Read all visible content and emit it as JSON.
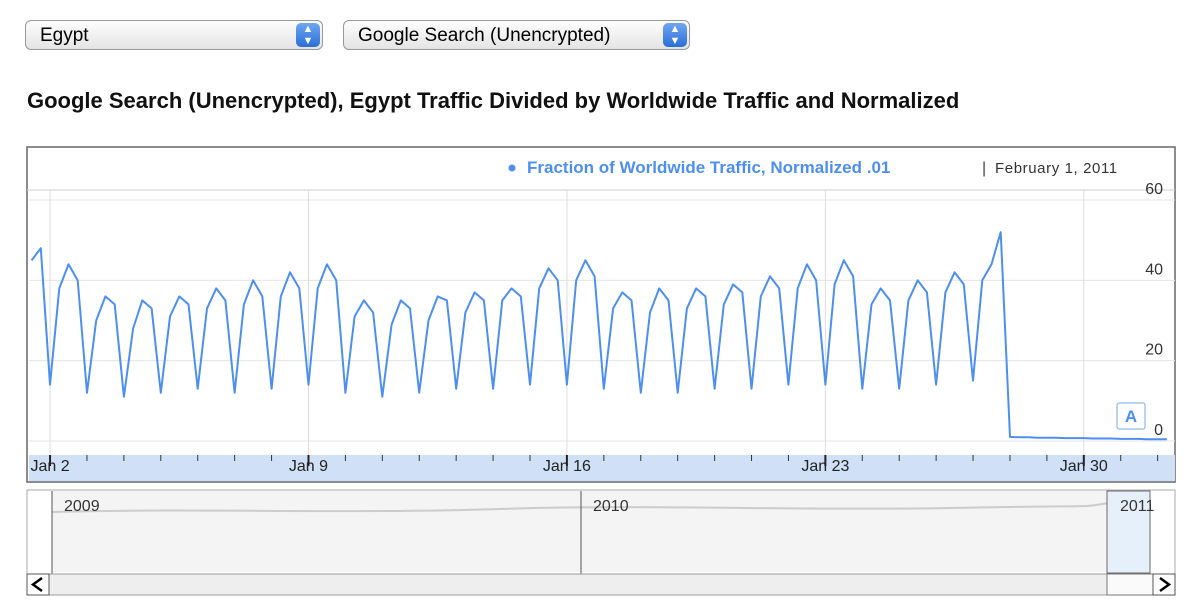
{
  "controls": {
    "country": "Egypt",
    "product": "Google Search (Unencrypted)"
  },
  "chart_data": {
    "type": "line",
    "title": "Google Search (Unencrypted), Egypt Traffic Divided by Worldwide Traffic and Normalized",
    "date": "February 1, 2011",
    "annotation": "A",
    "grid": true,
    "x": [
      1.5,
      1.75,
      2,
      2.25,
      2.5,
      2.75,
      3,
      3.25,
      3.5,
      3.75,
      4,
      4.25,
      4.5,
      4.75,
      5,
      5.25,
      5.5,
      5.75,
      6,
      6.25,
      6.5,
      6.75,
      7,
      7.25,
      7.5,
      7.75,
      8,
      8.25,
      8.5,
      8.75,
      9,
      9.25,
      9.5,
      9.75,
      10,
      10.25,
      10.5,
      10.75,
      11,
      11.25,
      11.5,
      11.75,
      12,
      12.25,
      12.5,
      12.75,
      13,
      13.25,
      13.5,
      13.75,
      14,
      14.25,
      14.5,
      14.75,
      15,
      15.25,
      15.5,
      15.75,
      16,
      16.25,
      16.5,
      16.75,
      17,
      17.25,
      17.5,
      17.75,
      18,
      18.25,
      18.5,
      18.75,
      19,
      19.25,
      19.5,
      19.75,
      20,
      20.25,
      20.5,
      20.75,
      21,
      21.25,
      21.5,
      21.75,
      22,
      22.25,
      22.5,
      22.75,
      23,
      23.25,
      23.5,
      23.75,
      24,
      24.25,
      24.5,
      24.75,
      25,
      25.25,
      25.5,
      25.75,
      26,
      26.25,
      26.5,
      26.75,
      27,
      27.25,
      27.5,
      27.75,
      28,
      28.25,
      28.5,
      28.75,
      29,
      29.25,
      29.5,
      29.75,
      30,
      30.25,
      30.5,
      30.75,
      31,
      31.25,
      31.5,
      31.75,
      32,
      32.25
    ],
    "series": [
      {
        "name": "Fraction of Worldwide Traffic, Normalized .01",
        "color": "#4d8ff0",
        "values": [
          45,
          48,
          14,
          38,
          44,
          40,
          12,
          30,
          36,
          34,
          11,
          28,
          35,
          33,
          12,
          31,
          36,
          34,
          13,
          33,
          38,
          35,
          12,
          34,
          40,
          36,
          13,
          36,
          42,
          38,
          14,
          38,
          44,
          40,
          12,
          31,
          35,
          32,
          11,
          29,
          35,
          33,
          12,
          30,
          36,
          35,
          13,
          32,
          37,
          35,
          13,
          35,
          38,
          36,
          14,
          38,
          43,
          40,
          14,
          40,
          45,
          41,
          13,
          33,
          37,
          35,
          12,
          32,
          38,
          35,
          12,
          33,
          38,
          36,
          13,
          34,
          39,
          37,
          13,
          36,
          41,
          38,
          14,
          38,
          44,
          40,
          14,
          39,
          45,
          41,
          13,
          34,
          38,
          35,
          13,
          35,
          40,
          37,
          14,
          37,
          42,
          39,
          15,
          40,
          44,
          52,
          1,
          0.9,
          0.9,
          0.8,
          0.8,
          0.8,
          0.7,
          0.7,
          0.7,
          0.6,
          0.6,
          0.6,
          0.5,
          0.5,
          0.5,
          0.4,
          0.4,
          0.4
        ]
      }
    ],
    "xlim": [
      1.43,
      32.47
    ],
    "ylim": [
      -3.5,
      62.5
    ],
    "xticks": [
      {
        "value": 2,
        "label": "Jan 2"
      },
      {
        "value": 9,
        "label": "Jan 9"
      },
      {
        "value": 16,
        "label": "Jan 16"
      },
      {
        "value": 23,
        "label": "Jan 23"
      },
      {
        "value": 30,
        "label": "Jan 30"
      }
    ],
    "yticks": [
      0,
      20,
      40,
      60
    ],
    "navigator_labels": [
      "2009",
      "2010",
      "2011"
    ]
  }
}
